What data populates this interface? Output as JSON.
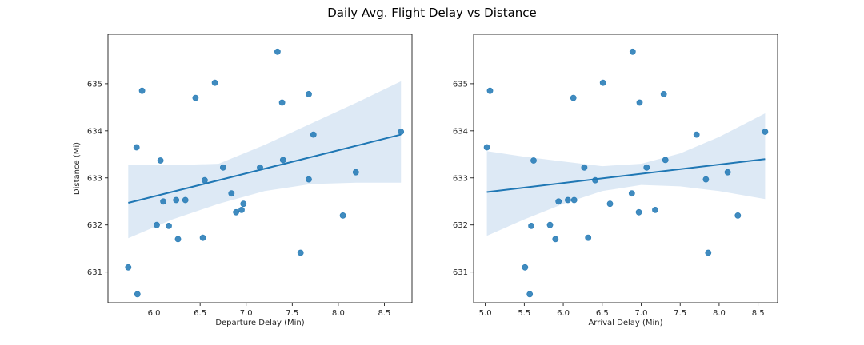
{
  "title": "Daily Avg. Flight Delay vs Distance",
  "colors": {
    "point": "#1f77b4",
    "line": "#1f77b4",
    "band": "#c6dbef"
  },
  "chart_data": [
    {
      "type": "scatter",
      "xlabel": "Departure Delay (Min)",
      "ylabel": "Distance (Mi)",
      "xlim": [
        5.5,
        8.8
      ],
      "ylim": [
        630.35,
        636.05
      ],
      "xticks": [
        6.0,
        6.5,
        7.0,
        7.5,
        8.0,
        8.5
      ],
      "xtick_labels": [
        "6.0",
        "6.5",
        "7.0",
        "7.5",
        "8.0",
        "8.5"
      ],
      "yticks": [
        631,
        632,
        633,
        634,
        635
      ],
      "ytick_labels": [
        "631",
        "632",
        "633",
        "634",
        "635"
      ],
      "points": [
        [
          5.72,
          631.1
        ],
        [
          5.81,
          633.65
        ],
        [
          5.82,
          630.53
        ],
        [
          5.87,
          634.85
        ],
        [
          6.03,
          632.0
        ],
        [
          6.07,
          633.37
        ],
        [
          6.1,
          632.5
        ],
        [
          6.16,
          631.98
        ],
        [
          6.24,
          632.53
        ],
        [
          6.26,
          631.7
        ],
        [
          6.34,
          632.53
        ],
        [
          6.45,
          634.7
        ],
        [
          6.53,
          631.73
        ],
        [
          6.55,
          632.95
        ],
        [
          6.66,
          635.02
        ],
        [
          6.75,
          633.22
        ],
        [
          6.84,
          632.67
        ],
        [
          6.89,
          632.27
        ],
        [
          6.95,
          632.32
        ],
        [
          6.97,
          632.45
        ],
        [
          7.15,
          633.22
        ],
        [
          7.34,
          635.68
        ],
        [
          7.39,
          634.6
        ],
        [
          7.4,
          633.38
        ],
        [
          7.59,
          631.41
        ],
        [
          7.68,
          632.97
        ],
        [
          7.68,
          634.78
        ],
        [
          7.73,
          633.92
        ],
        [
          8.05,
          632.2
        ],
        [
          8.19,
          633.12
        ],
        [
          8.68,
          633.98
        ]
      ],
      "regression": {
        "x": [
          5.72,
          8.68
        ],
        "y": [
          632.47,
          633.92
        ]
      },
      "ci_band": {
        "x": [
          5.72,
          6.2,
          6.7,
          7.2,
          7.7,
          8.2,
          8.68
        ],
        "lower": [
          631.72,
          632.12,
          632.45,
          632.72,
          632.87,
          632.9,
          632.9
        ],
        "upper": [
          633.27,
          633.27,
          633.3,
          633.7,
          634.15,
          634.6,
          635.05
        ]
      }
    },
    {
      "type": "scatter",
      "xlabel": "Arrival Delay (Min)",
      "ylabel": "",
      "xlim": [
        4.85,
        8.75
      ],
      "ylim": [
        630.35,
        636.05
      ],
      "xticks": [
        5.0,
        5.5,
        6.0,
        6.5,
        7.0,
        7.5,
        8.0,
        8.5
      ],
      "xtick_labels": [
        "5.0",
        "5.5",
        "6.0",
        "6.5",
        "7.0",
        "7.5",
        "8.0",
        "8.5"
      ],
      "yticks": [
        631,
        632,
        633,
        634,
        635
      ],
      "ytick_labels": [
        "631",
        "632",
        "633",
        "634",
        "635"
      ],
      "points": [
        [
          5.02,
          633.65
        ],
        [
          5.06,
          634.85
        ],
        [
          5.51,
          631.1
        ],
        [
          5.57,
          630.53
        ],
        [
          5.59,
          631.98
        ],
        [
          5.62,
          633.37
        ],
        [
          5.83,
          632.0
        ],
        [
          5.9,
          631.7
        ],
        [
          5.94,
          632.5
        ],
        [
          6.06,
          632.53
        ],
        [
          6.14,
          632.53
        ],
        [
          6.13,
          634.7
        ],
        [
          6.27,
          633.22
        ],
        [
          6.32,
          631.73
        ],
        [
          6.41,
          632.95
        ],
        [
          6.51,
          635.02
        ],
        [
          6.6,
          632.45
        ],
        [
          6.88,
          632.67
        ],
        [
          6.89,
          635.68
        ],
        [
          6.97,
          632.27
        ],
        [
          6.98,
          634.6
        ],
        [
          7.07,
          633.22
        ],
        [
          7.18,
          632.32
        ],
        [
          7.29,
          634.78
        ],
        [
          7.31,
          633.38
        ],
        [
          7.71,
          633.92
        ],
        [
          7.83,
          632.97
        ],
        [
          7.86,
          631.41
        ],
        [
          8.11,
          633.12
        ],
        [
          8.24,
          632.2
        ],
        [
          8.59,
          633.98
        ]
      ],
      "regression": {
        "x": [
          5.02,
          8.59
        ],
        "y": [
          632.7,
          633.4
        ]
      },
      "ci_band": {
        "x": [
          5.02,
          5.5,
          6.0,
          6.5,
          7.0,
          7.5,
          8.0,
          8.59
        ],
        "lower": [
          631.77,
          632.12,
          632.45,
          632.72,
          632.85,
          632.82,
          632.72,
          632.55
        ],
        "upper": [
          633.57,
          633.45,
          633.35,
          633.25,
          633.3,
          633.52,
          633.87,
          634.37
        ]
      }
    }
  ]
}
